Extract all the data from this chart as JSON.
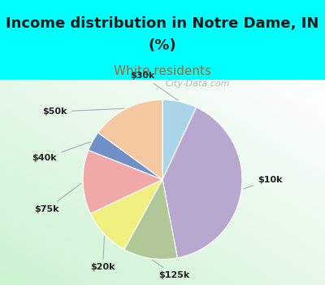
{
  "title_line1": "Income distribution in Notre Dame, IN",
  "title_line2": "(%)",
  "subtitle": "White residents",
  "title_fontsize": 13,
  "subtitle_fontsize": 11,
  "title_color": "#1a1a1a",
  "subtitle_color": "#b06030",
  "bg_cyan": "#00FFFF",
  "chart_bg_top": "#f0f8f0",
  "chart_bg_bottom": "#d8eed8",
  "wedge_labels": [
    "$30k",
    "$10k",
    "$125k",
    "$20k",
    "$75k",
    "$40k",
    "$50k"
  ],
  "wedge_sizes": [
    7,
    40,
    11,
    10,
    13,
    4,
    15
  ],
  "wedge_colors": [
    "#aad4e8",
    "#b8a8d0",
    "#b0c898",
    "#f0f080",
    "#f0a8a8",
    "#7090c8",
    "#f4c8a0"
  ],
  "label_color": "#222222",
  "label_fontsize": 8,
  "watermark": "City-Data.com",
  "watermark_color": "#a0b0b8",
  "watermark_fontsize": 8
}
